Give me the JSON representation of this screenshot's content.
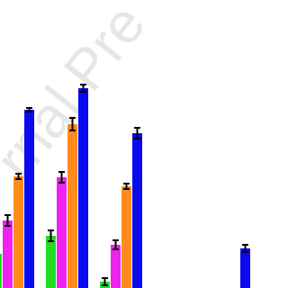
{
  "chart_data": {
    "type": "bar",
    "watermark": "rnal Pre",
    "categories": [
      null,
      null,
      null,
      null,
      null
    ],
    "ylim": [
      0,
      320
    ],
    "series": [
      {
        "name": null,
        "color": "#22dd22",
        "values": [
          38,
          58,
          7,
          0,
          0
        ],
        "errors": [
          5,
          6,
          4,
          0,
          0
        ]
      },
      {
        "name": null,
        "color": "#ee22ee",
        "values": [
          75,
          123,
          48,
          0,
          0
        ],
        "errors": [
          6,
          6,
          5,
          0,
          0
        ]
      },
      {
        "name": null,
        "color": "#ff8c1a",
        "values": [
          124,
          182,
          113,
          0,
          0
        ],
        "errors": [
          3,
          7,
          3,
          0,
          0
        ]
      },
      {
        "name": null,
        "color": "#0a0aee",
        "values": [
          198,
          222,
          172,
          0,
          44
        ],
        "errors": [
          2,
          4,
          6,
          0,
          4
        ]
      }
    ]
  }
}
